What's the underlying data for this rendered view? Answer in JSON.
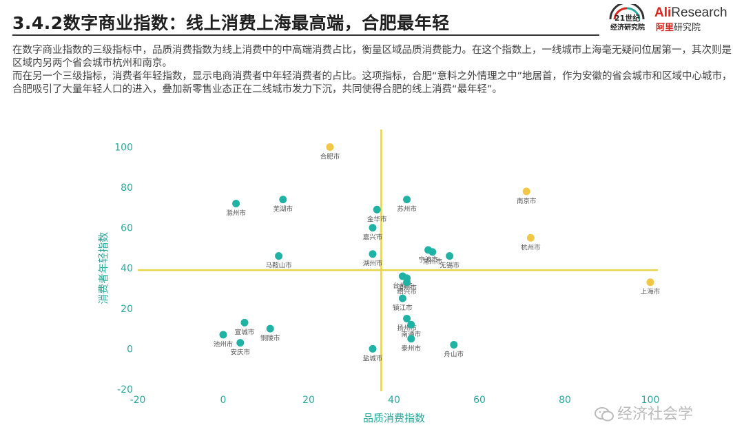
{
  "header": {
    "title": "3.4.2数字商业指数：线上消费上海最高端，合肥最年轻",
    "logo_21": {
      "line1": "21世纪",
      "line2": "经济研究院"
    },
    "logo_ali": {
      "brand_red": "Ali",
      "brand_rest": "Research",
      "sub_red": "阿里",
      "sub_rest": "研究院"
    }
  },
  "description": {
    "paragraph1": "在数字商业指数的三级指标中，品质消费指数为线上消费中的中高端消费占比，衡量区域品质消费能力。在这个指数上，一线城市上海毫无疑问位居第一，其次则是区域内另两个省会城市杭州和南京。",
    "paragraph2": "而在另一个三级指标，消费者年轻指数，显示电商消费者中年轻消费者的占比。这项指标，合肥“意料之外情理之中”地居首，作为安徽的省会城市和区域中心城市，合肥吸引了大量年轻人口的进入，叠加新零售业态正在二线城市发力下沉，共同使得合肥的线上消费“最年轻”。"
  },
  "watermark": "经济社会学",
  "chart_data": {
    "type": "scatter",
    "xlabel": "品质消费指数",
    "ylabel": "消费者年轻指数",
    "xlim": [
      -20,
      105
    ],
    "ylim": [
      -20,
      108
    ],
    "xticks": [
      -20,
      0,
      20,
      40,
      60,
      80,
      100
    ],
    "yticks": [
      -20,
      0,
      20,
      40,
      60,
      80,
      100
    ],
    "grid": false,
    "reference_lines": {
      "x": 37,
      "y": 39
    },
    "colors": {
      "teal": "#20b2a4",
      "gold": "#f2c744",
      "refline": "#e6d44a",
      "axis_text": "#2aa89b"
    },
    "points": [
      {
        "label": "合肥市",
        "x": 25,
        "y": 100,
        "color": "gold"
      },
      {
        "label": "南京市",
        "x": 71,
        "y": 78,
        "color": "gold"
      },
      {
        "label": "杭州市",
        "x": 72,
        "y": 55,
        "color": "gold"
      },
      {
        "label": "上海市",
        "x": 100,
        "y": 33,
        "color": "gold"
      },
      {
        "label": "滁州市",
        "x": 3,
        "y": 72,
        "color": "teal"
      },
      {
        "label": "芜湖市",
        "x": 14,
        "y": 74,
        "color": "teal"
      },
      {
        "label": "苏州市",
        "x": 43,
        "y": 74,
        "color": "teal"
      },
      {
        "label": "金华市",
        "x": 36,
        "y": 69,
        "color": "teal"
      },
      {
        "label": "嘉兴市",
        "x": 35,
        "y": 60,
        "color": "teal"
      },
      {
        "label": "宁波市",
        "x": 48,
        "y": 49,
        "color": "teal"
      },
      {
        "label": "无锡市",
        "x": 53,
        "y": 46,
        "color": "teal"
      },
      {
        "label": "常州市",
        "x": 49,
        "y": 48,
        "color": "teal"
      },
      {
        "label": "马鞍山市",
        "x": 13,
        "y": 46,
        "color": "teal"
      },
      {
        "label": "湖州市",
        "x": 35,
        "y": 47,
        "color": "teal"
      },
      {
        "label": "台州市",
        "x": 42,
        "y": 36,
        "color": "teal"
      },
      {
        "label": "温州市",
        "x": 43,
        "y": 35,
        "color": "teal"
      },
      {
        "label": "绍兴市",
        "x": 43,
        "y": 33,
        "color": "teal"
      },
      {
        "label": "镇江市",
        "x": 42,
        "y": 25,
        "color": "teal"
      },
      {
        "label": "扬州市",
        "x": 43,
        "y": 15,
        "color": "teal"
      },
      {
        "label": "南通市",
        "x": 44,
        "y": 12,
        "color": "teal"
      },
      {
        "label": "泰州市",
        "x": 44,
        "y": 5,
        "color": "teal"
      },
      {
        "label": "舟山市",
        "x": 54,
        "y": 2,
        "color": "teal"
      },
      {
        "label": "盐城市",
        "x": 35,
        "y": 0,
        "color": "teal"
      },
      {
        "label": "宣城市",
        "x": 5,
        "y": 13,
        "color": "teal"
      },
      {
        "label": "铜陵市",
        "x": 11,
        "y": 10,
        "color": "teal"
      },
      {
        "label": "池州市",
        "x": 0,
        "y": 7,
        "color": "teal"
      },
      {
        "label": "安庆市",
        "x": 4,
        "y": 3,
        "color": "teal"
      }
    ]
  }
}
